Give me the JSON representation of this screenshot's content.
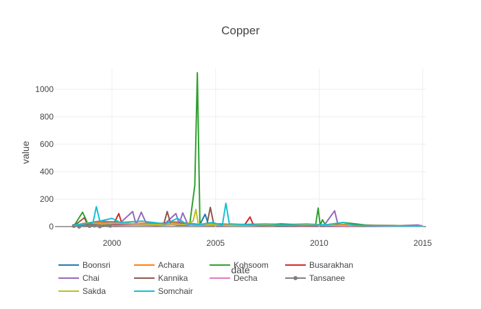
{
  "chart_data": {
    "type": "line",
    "title": "Copper",
    "xlabel": "date",
    "ylabel": "value",
    "x_axis_type": "date",
    "xlim": [
      "1997-04-01",
      "2015-03-01"
    ],
    "ylim": [
      -40,
      1150
    ],
    "x_ticks": [
      "2000",
      "2005",
      "2010",
      "2015"
    ],
    "y_ticks": [
      0,
      200,
      400,
      600,
      800,
      1000
    ],
    "grid": true,
    "legend_position": "bottom",
    "series": [
      {
        "name": "Boonsri",
        "color": "#1f77b4",
        "marker": false,
        "points": [
          [
            "1998-03-01",
            5
          ],
          [
            "1998-07-01",
            10
          ],
          [
            "1998-10-01",
            20
          ],
          [
            "1999-03-01",
            15
          ],
          [
            "1999-08-01",
            25
          ],
          [
            "2000-02-01",
            20
          ],
          [
            "2000-08-01",
            30
          ],
          [
            "2001-03-01",
            15
          ],
          [
            "2001-10-01",
            25
          ],
          [
            "2002-05-01",
            20
          ],
          [
            "2002-11-01",
            35
          ],
          [
            "2003-05-01",
            30
          ],
          [
            "2003-09-01",
            25
          ],
          [
            "2004-04-01",
            15
          ],
          [
            "2004-07-01",
            90
          ],
          [
            "2004-09-01",
            10
          ],
          [
            "2005-05-01",
            15
          ],
          [
            "2006-03-01",
            10
          ],
          [
            "2007-02-01",
            15
          ],
          [
            "2008-01-01",
            8
          ],
          [
            "2009-03-01",
            10
          ],
          [
            "2010-06-01",
            8
          ],
          [
            "2011-05-01",
            15
          ],
          [
            "2012-05-01",
            10
          ],
          [
            "2013-08-01",
            8
          ],
          [
            "2015-01-01",
            5
          ]
        ]
      },
      {
        "name": "Achara",
        "color": "#ff7f0e",
        "marker": false,
        "points": [
          [
            "1998-03-01",
            8
          ],
          [
            "1998-09-01",
            25
          ],
          [
            "1999-05-01",
            30
          ],
          [
            "2000-03-01",
            35
          ],
          [
            "2000-10-01",
            20
          ],
          [
            "2001-06-01",
            25
          ],
          [
            "2002-03-01",
            20
          ],
          [
            "2002-10-01",
            30
          ],
          [
            "2003-05-01",
            25
          ],
          [
            "2003-10-01",
            20
          ],
          [
            "2004-04-01",
            15
          ],
          [
            "2005-03-01",
            20
          ],
          [
            "2006-01-01",
            15
          ],
          [
            "2007-06-01",
            20
          ],
          [
            "2008-06-01",
            15
          ],
          [
            "2009-06-01",
            20
          ],
          [
            "2010-06-01",
            10
          ],
          [
            "2011-06-01",
            15
          ],
          [
            "2012-10-01",
            10
          ],
          [
            "2015-01-01",
            5
          ]
        ]
      },
      {
        "name": "Kohsoom",
        "color": "#2ca02c",
        "marker": false,
        "points": [
          [
            "1998-03-01",
            5
          ],
          [
            "1998-08-01",
            105
          ],
          [
            "1998-11-01",
            20
          ],
          [
            "1999-05-01",
            10
          ],
          [
            "2000-06-01",
            30
          ],
          [
            "2001-01-01",
            20
          ],
          [
            "2002-01-01",
            10
          ],
          [
            "2002-08-01",
            20
          ],
          [
            "2003-03-01",
            10
          ],
          [
            "2003-10-01",
            10
          ],
          [
            "2004-01-01",
            300
          ],
          [
            "2004-02-15",
            1120
          ],
          [
            "2004-04-01",
            10
          ],
          [
            "2005-02-01",
            20
          ],
          [
            "2006-03-01",
            10
          ],
          [
            "2007-09-01",
            15
          ],
          [
            "2008-03-01",
            20
          ],
          [
            "2009-06-01",
            10
          ],
          [
            "2009-11-01",
            15
          ],
          [
            "2009-12-15",
            135
          ],
          [
            "2010-01-20",
            10
          ],
          [
            "2010-03-01",
            50
          ],
          [
            "2010-05-01",
            5
          ],
          [
            "2011-03-01",
            30
          ],
          [
            "2012-05-01",
            10
          ],
          [
            "2013-06-01",
            5
          ],
          [
            "2015-01-01",
            3
          ]
        ]
      },
      {
        "name": "Busarakhan",
        "color": "#d62728",
        "marker": false,
        "points": [
          [
            "1998-03-01",
            5
          ],
          [
            "1998-09-01",
            15
          ],
          [
            "1999-06-01",
            10
          ],
          [
            "2000-02-01",
            20
          ],
          [
            "2000-05-01",
            95
          ],
          [
            "2000-07-01",
            10
          ],
          [
            "2001-06-01",
            15
          ],
          [
            "2002-06-01",
            10
          ],
          [
            "2003-04-01",
            20
          ],
          [
            "2004-05-01",
            15
          ],
          [
            "2005-06-01",
            10
          ],
          [
            "2006-06-01",
            15
          ],
          [
            "2006-09-01",
            70
          ],
          [
            "2006-11-01",
            10
          ],
          [
            "2008-01-01",
            10
          ],
          [
            "2009-09-01",
            8
          ],
          [
            "2010-08-01",
            15
          ],
          [
            "2011-06-01",
            10
          ],
          [
            "2012-06-01",
            8
          ],
          [
            "2015-01-01",
            4
          ]
        ]
      },
      {
        "name": "Chai",
        "color": "#9467bd",
        "marker": false,
        "points": [
          [
            "1998-03-01",
            5
          ],
          [
            "1998-10-01",
            25
          ],
          [
            "1999-06-01",
            40
          ],
          [
            "2000-06-01",
            30
          ],
          [
            "2001-01-01",
            110
          ],
          [
            "2001-03-01",
            15
          ],
          [
            "2001-06-01",
            105
          ],
          [
            "2001-09-01",
            20
          ],
          [
            "2002-08-01",
            25
          ],
          [
            "2003-02-01",
            95
          ],
          [
            "2003-04-01",
            20
          ],
          [
            "2003-06-01",
            100
          ],
          [
            "2003-09-01",
            15
          ],
          [
            "2004-06-01",
            10
          ],
          [
            "2005-06-01",
            15
          ],
          [
            "2006-06-01",
            10
          ],
          [
            "2007-06-01",
            12
          ],
          [
            "2008-06-01",
            10
          ],
          [
            "2009-06-01",
            15
          ],
          [
            "2010-04-01",
            10
          ],
          [
            "2010-08-01",
            80
          ],
          [
            "2010-10-01",
            115
          ],
          [
            "2010-12-01",
            10
          ],
          [
            "2012-01-01",
            8
          ],
          [
            "2013-06-01",
            5
          ],
          [
            "2014-10-01",
            12
          ],
          [
            "2015-01-01",
            5
          ]
        ]
      },
      {
        "name": "Kannika",
        "color": "#8c564b",
        "marker": false,
        "points": [
          [
            "1998-03-01",
            5
          ],
          [
            "1998-09-01",
            65
          ],
          [
            "1998-11-01",
            10
          ],
          [
            "1999-08-01",
            20
          ],
          [
            "2000-06-01",
            15
          ],
          [
            "2001-06-01",
            20
          ],
          [
            "2002-07-01",
            15
          ],
          [
            "2002-09-01",
            110
          ],
          [
            "2002-11-01",
            20
          ],
          [
            "2003-06-01",
            15
          ],
          [
            "2004-03-01",
            10
          ],
          [
            "2004-08-01",
            15
          ],
          [
            "2004-10-01",
            140
          ],
          [
            "2004-12-01",
            15
          ],
          [
            "2005-09-01",
            10
          ],
          [
            "2006-09-01",
            15
          ],
          [
            "2007-09-01",
            10
          ],
          [
            "2008-09-01",
            12
          ],
          [
            "2009-09-01",
            8
          ],
          [
            "2011-02-01",
            10
          ],
          [
            "2013-06-01",
            5
          ],
          [
            "2015-01-01",
            4
          ]
        ]
      },
      {
        "name": "Decha",
        "color": "#e377c2",
        "marker": false,
        "points": [
          [
            "1998-03-01",
            5
          ],
          [
            "1999-03-01",
            10
          ],
          [
            "2000-03-01",
            8
          ],
          [
            "2001-03-01",
            12
          ],
          [
            "2002-03-01",
            8
          ],
          [
            "2003-03-01",
            15
          ],
          [
            "2004-03-01",
            10
          ],
          [
            "2005-03-01",
            8
          ],
          [
            "2006-03-01",
            12
          ],
          [
            "2007-03-01",
            8
          ],
          [
            "2008-03-01",
            10
          ],
          [
            "2009-03-01",
            6
          ],
          [
            "2010-03-01",
            8
          ],
          [
            "2011-03-01",
            5
          ],
          [
            "2012-03-01",
            6
          ],
          [
            "2013-03-01",
            4
          ],
          [
            "2015-01-01",
            3
          ]
        ]
      },
      {
        "name": "Tansanee",
        "color": "#7f7f7f",
        "marker": true,
        "points": [
          [
            "1998-03-01",
            5
          ],
          [
            "1998-06-01",
            0
          ],
          [
            "1998-09-01",
            10
          ],
          [
            "1998-12-01",
            5
          ],
          [
            "1999-03-01",
            8
          ],
          [
            "1999-06-01",
            2
          ],
          [
            "1999-09-01",
            12
          ],
          [
            "1999-12-01",
            6
          ]
        ]
      },
      {
        "name": "Sakda",
        "color": "#bcbd22",
        "marker": false,
        "points": [
          [
            "1998-03-01",
            10
          ],
          [
            "1998-12-01",
            30
          ],
          [
            "1999-07-01",
            20
          ],
          [
            "2000-04-01",
            25
          ],
          [
            "2001-04-01",
            20
          ],
          [
            "2002-04-01",
            15
          ],
          [
            "2002-12-01",
            20
          ],
          [
            "2003-07-01",
            15
          ],
          [
            "2003-12-01",
            40
          ],
          [
            "2004-01-20",
            125
          ],
          [
            "2004-03-01",
            20
          ],
          [
            "2004-10-01",
            15
          ],
          [
            "2005-10-01",
            10
          ],
          [
            "2007-06-01",
            15
          ],
          [
            "2008-06-01",
            10
          ],
          [
            "2009-06-01",
            15
          ],
          [
            "2010-10-01",
            10
          ],
          [
            "2012-10-01",
            8
          ],
          [
            "2015-01-01",
            5
          ]
        ]
      },
      {
        "name": "Somchair",
        "color": "#17becf",
        "marker": false,
        "points": [
          [
            "1998-03-01",
            10
          ],
          [
            "1999-02-01",
            30
          ],
          [
            "1999-04-01",
            145
          ],
          [
            "1999-06-01",
            40
          ],
          [
            "2000-01-01",
            60
          ],
          [
            "2000-06-01",
            30
          ],
          [
            "2001-06-01",
            40
          ],
          [
            "2002-01-01",
            30
          ],
          [
            "2002-08-01",
            20
          ],
          [
            "2003-03-01",
            60
          ],
          [
            "2003-08-01",
            20
          ],
          [
            "2004-04-01",
            15
          ],
          [
            "2004-11-01",
            30
          ],
          [
            "2005-02-01",
            20
          ],
          [
            "2005-05-01",
            10
          ],
          [
            "2005-07-01",
            170
          ],
          [
            "2005-09-01",
            20
          ],
          [
            "2006-06-01",
            15
          ],
          [
            "2007-06-01",
            10
          ],
          [
            "2008-06-01",
            12
          ],
          [
            "2009-06-01",
            10
          ],
          [
            "2010-06-01",
            15
          ],
          [
            "2011-03-01",
            30
          ],
          [
            "2011-09-01",
            10
          ],
          [
            "2012-03-01",
            8
          ],
          [
            "2013-06-01",
            6
          ],
          [
            "2015-01-01",
            4
          ]
        ]
      }
    ]
  }
}
